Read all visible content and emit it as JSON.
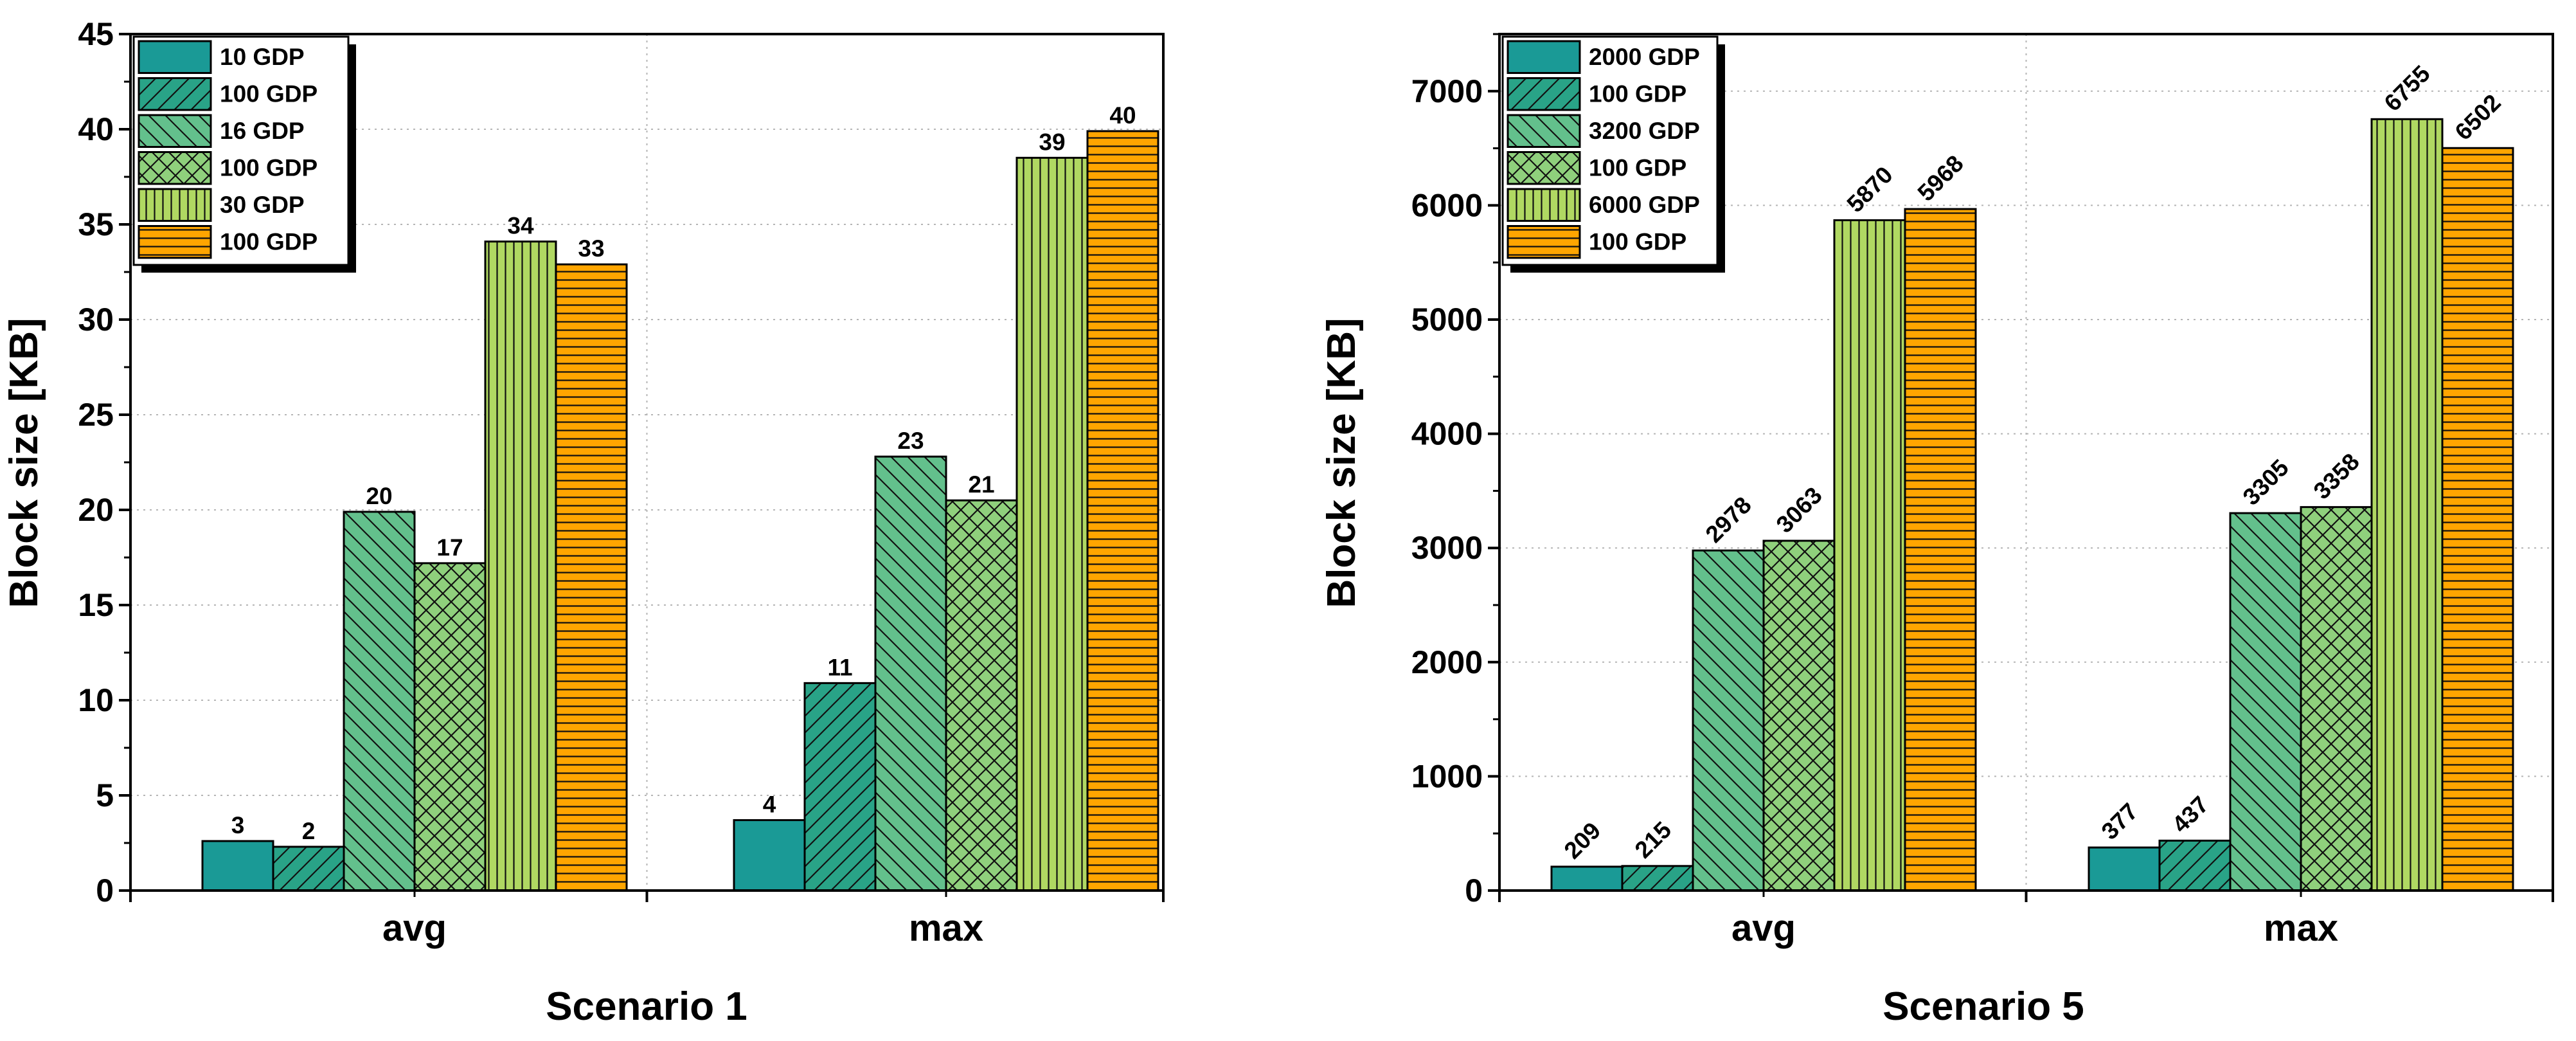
{
  "chart_data": [
    {
      "type": "bar",
      "title": "Scenario 1",
      "xlabel": "Scenario 1",
      "ylabel": "Block size [KB]",
      "ylim": [
        0,
        45
      ],
      "yticks": [
        0,
        5,
        10,
        15,
        20,
        25,
        30,
        35,
        40,
        45
      ],
      "ytick_labels": [
        "0",
        "5",
        "10",
        "15",
        "20",
        "25",
        "30",
        "35",
        "40",
        "45"
      ],
      "grid": true,
      "legend_position": "top-left",
      "categories": [
        "avg",
        "max"
      ],
      "series": [
        {
          "name": "10 GDP",
          "values": [
            2.6,
            3.7
          ],
          "labels": [
            "3",
            "4"
          ],
          "color": "#1a9a96",
          "pattern": "solid"
        },
        {
          "name": "100 GDP",
          "values": [
            2.3,
            10.9
          ],
          "labels": [
            "2",
            "11"
          ],
          "color": "#29a387",
          "pattern": "hatch-forward"
        },
        {
          "name": "16 GDP",
          "values": [
            19.9,
            22.8
          ],
          "labels": [
            "20",
            "23"
          ],
          "color": "#63c08c",
          "pattern": "hatch-backward"
        },
        {
          "name": "100 GDP",
          "values": [
            17.2,
            20.5
          ],
          "labels": [
            "17",
            "21"
          ],
          "color": "#8fd07c",
          "pattern": "crosshatch"
        },
        {
          "name": "30 GDP",
          "values": [
            34.1,
            38.5
          ],
          "labels": [
            "34",
            "39"
          ],
          "color": "#b0d862",
          "pattern": "vertical"
        },
        {
          "name": "100 GDP",
          "values": [
            32.9,
            39.9
          ],
          "labels": [
            "33",
            "40"
          ],
          "color": "#ffa500",
          "pattern": "horizontal"
        }
      ]
    },
    {
      "type": "bar",
      "title": "Scenario 5",
      "xlabel": "Scenario 5",
      "ylabel": "Block size [KB]",
      "ylim": [
        0,
        7500
      ],
      "yticks": [
        0,
        1000,
        2000,
        3000,
        4000,
        5000,
        6000,
        7000
      ],
      "ytick_labels": [
        "0",
        "1000",
        "2000",
        "3000",
        "4000",
        "5000",
        "6000",
        "7000"
      ],
      "grid": true,
      "legend_position": "top-left",
      "categories": [
        "avg",
        "max"
      ],
      "series": [
        {
          "name": "2000 GDP",
          "values": [
            209,
            377
          ],
          "labels": [
            "209",
            "377"
          ],
          "color": "#1a9a96",
          "pattern": "solid"
        },
        {
          "name": "100 GDP",
          "values": [
            215,
            437
          ],
          "labels": [
            "215",
            "437"
          ],
          "color": "#29a387",
          "pattern": "hatch-forward"
        },
        {
          "name": "3200 GDP",
          "values": [
            2978,
            3305
          ],
          "labels": [
            "2978",
            "3305"
          ],
          "color": "#63c08c",
          "pattern": "hatch-backward"
        },
        {
          "name": "100 GDP",
          "values": [
            3063,
            3358
          ],
          "labels": [
            "3063",
            "3358"
          ],
          "color": "#8fd07c",
          "pattern": "crosshatch"
        },
        {
          "name": "6000 GDP",
          "values": [
            5870,
            6755
          ],
          "labels": [
            "5870",
            "6755"
          ],
          "color": "#b0d862",
          "pattern": "vertical"
        },
        {
          "name": "100 GDP",
          "values": [
            5968,
            6502
          ],
          "labels": [
            "5968",
            "6502"
          ],
          "color": "#ffa500",
          "pattern": "horizontal"
        }
      ]
    }
  ]
}
